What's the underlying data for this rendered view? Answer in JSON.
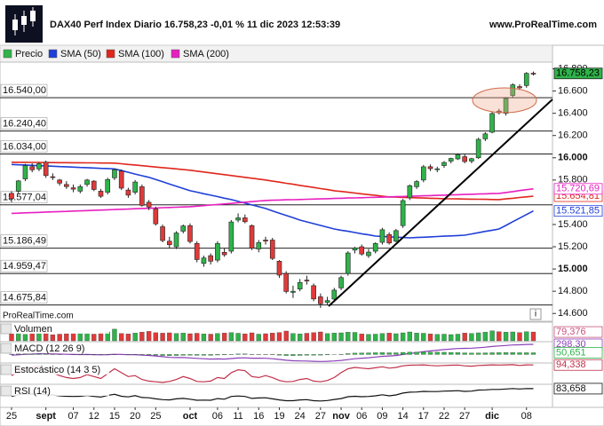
{
  "header": {
    "title": "DAX40 Perf Index Diario 16.758,23 -0,01 % 11 dic 2023 12:53:39",
    "site": "www.ProRealTime.com"
  },
  "chart_data": {
    "type": "candlestick",
    "name": "Precio",
    "up_color": "#2fb34a",
    "down_color": "#e03a3a",
    "watermark": "ProRealTime.com",
    "last_label": "16.758,23",
    "categories": [
      "25",
      null,
      null,
      null,
      null,
      "sept",
      null,
      null,
      null,
      "07",
      null,
      null,
      "12",
      null,
      null,
      "15",
      null,
      null,
      "20",
      null,
      null,
      "25",
      null,
      null,
      null,
      null,
      "oct",
      null,
      null,
      null,
      "06",
      null,
      null,
      "11",
      null,
      null,
      "16",
      null,
      null,
      "19",
      null,
      null,
      "24",
      null,
      null,
      "27",
      null,
      null,
      "nov",
      null,
      null,
      "06",
      null,
      null,
      "09",
      null,
      null,
      "14",
      null,
      null,
      "17",
      null,
      null,
      "22",
      null,
      null,
      "27",
      null,
      null,
      null,
      "dic",
      null,
      null,
      null,
      null,
      "08",
      null
    ],
    "open": [
      15680,
      15700,
      15810,
      15920,
      15900,
      15960,
      15830,
      15800,
      15760,
      15730,
      15700,
      15760,
      15790,
      15700,
      15690,
      15820,
      15880,
      15710,
      15690,
      15740,
      15600,
      15540,
      15380,
      15250,
      15200,
      15340,
      15390,
      15230,
      15050,
      15120,
      15080,
      15150,
      15160,
      15440,
      15460,
      15390,
      15180,
      15260,
      15260,
      15070,
      14960,
      14790,
      14820,
      14900,
      14850,
      14750,
      14700,
      14730,
      14830,
      14960,
      15170,
      15200,
      15120,
      15160,
      15240,
      15310,
      15250,
      15390,
      15640,
      15740,
      15800,
      15920,
      15900,
      15930,
      15970,
      15990,
      16010,
      15970,
      16000,
      16170,
      16230,
      16420,
      16400,
      16560,
      16640,
      16650,
      16760
    ],
    "high": [
      15700,
      15800,
      15945,
      15950,
      15960,
      15975,
      15860,
      15810,
      15790,
      15760,
      15760,
      15810,
      15800,
      15720,
      15820,
      15900,
      15895,
      15730,
      15800,
      15760,
      15620,
      15560,
      15400,
      15290,
      15340,
      15400,
      15410,
      15250,
      15120,
      15140,
      15250,
      15190,
      15440,
      15500,
      15490,
      15400,
      15260,
      15290,
      15280,
      15080,
      14980,
      14850,
      14910,
      14940,
      14870,
      14780,
      14750,
      14830,
      14940,
      15160,
      15200,
      15220,
      15180,
      15240,
      15370,
      15330,
      15360,
      15630,
      15760,
      15800,
      15935,
      15940,
      15920,
      15970,
      16000,
      16040,
      16030,
      16000,
      16180,
      16230,
      16410,
      16440,
      16545,
      16670,
      16660,
      16770,
      16775
    ],
    "low": [
      15600,
      15680,
      15790,
      15870,
      15880,
      15820,
      15800,
      15750,
      15720,
      15690,
      15680,
      15740,
      15700,
      15640,
      15670,
      15800,
      15710,
      15640,
      15670,
      15560,
      15530,
      15390,
      15240,
      15190,
      15180,
      15320,
      15230,
      15060,
      15020,
      15040,
      15060,
      15110,
      15140,
      15420,
      15410,
      15170,
      15150,
      15220,
      15080,
      14920,
      14780,
      14740,
      14800,
      14860,
      14710,
      14650,
      14680,
      14710,
      14810,
      14940,
      15140,
      15120,
      15100,
      15140,
      15220,
      15220,
      15240,
      15370,
      15620,
      15720,
      15780,
      15880,
      15870,
      15910,
      15950,
      15980,
      15950,
      15950,
      15990,
      16150,
      16220,
      16390,
      16380,
      16540,
      16610,
      16630,
      16740
    ],
    "close": [
      15632,
      15792,
      15930,
      15892,
      15947,
      15840,
      15825,
      15772,
      15741,
      15718,
      15740,
      15800,
      15715,
      15654,
      15805,
      15893,
      15727,
      15664,
      15782,
      15572,
      15557,
      15406,
      15256,
      15218,
      15324,
      15387,
      15247,
      15085,
      15099,
      15070,
      15229,
      15128,
      15423,
      15460,
      15425,
      15187,
      15237,
      15251,
      15095,
      14945,
      14798,
      14800,
      14879,
      14892,
      14731,
      14687,
      14716,
      14810,
      14923,
      15144,
      15189,
      15135,
      15152,
      15229,
      15353,
      15234,
      15345,
      15615,
      15749,
      15786,
      15919,
      15902,
      15901,
      15958,
      15994,
      16029,
      15966,
      15992,
      16166,
      16215,
      16398,
      16405,
      16533,
      16656,
      16629,
      16759,
      16758.23
    ],
    "ylim": [
      14530,
      16860
    ],
    "yticks": [
      {
        "value": 16800,
        "label": "16.800"
      },
      {
        "value": 16600,
        "label": "16.600"
      },
      {
        "value": 16400,
        "label": "16.400"
      },
      {
        "value": 16200,
        "label": "16.200"
      },
      {
        "value": 16000,
        "label": "16.000"
      },
      {
        "value": 15800,
        "label": "15.800"
      },
      {
        "value": 15400,
        "label": "15.400"
      },
      {
        "value": 15200,
        "label": "15.200"
      },
      {
        "value": 15000,
        "label": "15.000"
      },
      {
        "value": 14800,
        "label": "14.800"
      },
      {
        "value": 14600,
        "label": "14.600"
      }
    ],
    "levels": [
      {
        "value": 16540,
        "label": "16.540,00"
      },
      {
        "value": 16240.4,
        "label": "16.240,40"
      },
      {
        "value": 16034,
        "label": "16.034,00"
      },
      {
        "value": 15577.04,
        "label": "15.577,04"
      },
      {
        "value": 15186.49,
        "label": "15.186,49"
      },
      {
        "value": 14959.47,
        "label": "14.959,47"
      },
      {
        "value": 14675.84,
        "label": "14.675,84"
      }
    ],
    "series": [
      {
        "name": "SMA (50)",
        "color": "#1f3fd8",
        "last_label": "15.521,85",
        "values": [
          15940,
          15937,
          15935,
          15932,
          15929,
          15927,
          15924,
          15921,
          15919,
          15916,
          15913,
          15911,
          15908,
          15905,
          15903,
          15900,
          15885,
          15870,
          15854,
          15839,
          15824,
          15804,
          15784,
          15764,
          15744,
          15724,
          15704,
          15691,
          15677,
          15664,
          15651,
          15637,
          15624,
          15608,
          15592,
          15576,
          15560,
          15544,
          15523,
          15502,
          15482,
          15461,
          15440,
          15424,
          15408,
          15392,
          15376,
          15360,
          15349,
          15339,
          15328,
          15317,
          15307,
          15296,
          15293,
          15290,
          15286,
          15283,
          15280,
          15283,
          15286,
          15289,
          15292,
          15295,
          15298,
          15301,
          15304,
          15315,
          15326,
          15338,
          15349,
          15360,
          15392,
          15425,
          15457,
          15490,
          15521.85
        ]
      },
      {
        "name": "SMA (100)",
        "color": "#e0261c",
        "last_label": "15.654,81",
        "values": [
          15960,
          15959,
          15959,
          15958,
          15958,
          15957,
          15957,
          15956,
          15956,
          15955,
          15955,
          15954,
          15954,
          15953,
          15953,
          15952,
          15946,
          15940,
          15935,
          15929,
          15923,
          15917,
          15911,
          15906,
          15900,
          15894,
          15888,
          15880,
          15872,
          15864,
          15856,
          15848,
          15840,
          15832,
          15824,
          15816,
          15808,
          15800,
          15790,
          15781,
          15771,
          15762,
          15752,
          15742,
          15733,
          15723,
          15714,
          15704,
          15697,
          15690,
          15683,
          15676,
          15669,
          15662,
          15655,
          15648,
          15646,
          15644,
          15642,
          15640,
          15638,
          15636,
          15634,
          15632,
          15631,
          15630,
          15629,
          15628,
          15627,
          15626,
          15625,
          15624,
          15630,
          15636,
          15643,
          15649,
          15654.81
        ]
      },
      {
        "name": "SMA (200)",
        "color": "#e81fc0",
        "last_label": "15.720,69",
        "values": [
          15500,
          15502,
          15505,
          15507,
          15509,
          15512,
          15514,
          15516,
          15518,
          15521,
          15523,
          15525,
          15528,
          15530,
          15532,
          15535,
          15537,
          15539,
          15542,
          15544,
          15546,
          15548,
          15551,
          15553,
          15555,
          15558,
          15560,
          15565,
          15570,
          15575,
          15580,
          15585,
          15590,
          15596,
          15601,
          15606,
          15611,
          15616,
          15618,
          15620,
          15622,
          15623,
          15625,
          15627,
          15629,
          15630,
          15632,
          15634,
          15636,
          15638,
          15639,
          15641,
          15643,
          15645,
          15646,
          15648,
          15650,
          15652,
          15654,
          15656,
          15658,
          15660,
          15662,
          15664,
          15666,
          15668,
          15670,
          15672,
          15674,
          15676,
          15678,
          15680,
          15688,
          15696,
          15705,
          15713,
          15720.69
        ]
      }
    ],
    "panes": [
      {
        "name": "Volumen",
        "ylim": [
          0,
          160
        ],
        "series": [
          {
            "type": "bar",
            "color": "#c8507c",
            "last_label": "79,376",
            "values": [
              62,
              70,
              58,
              66,
              72,
              75,
              55,
              60,
              64,
              68,
              71,
              65,
              60,
              74,
              80,
              105,
              66,
              62,
              70,
              78,
              85,
              73,
              69,
              72,
              66,
              70,
              64,
              68,
              62,
              60,
              66,
              70,
              74,
              68,
              63,
              72,
              60,
              64,
              70,
              75,
              88,
              66,
              62,
              68,
              74,
              80,
              65,
              70,
              72,
              78,
              76,
              62,
              58,
              60,
              66,
              70,
              64,
              72,
              80,
              70,
              68,
              62,
              58,
              60,
              56,
              60,
              70,
              66,
              72,
              78,
              90,
              82,
              78,
              80,
              74,
              82,
              79.376
            ]
          }
        ]
      },
      {
        "name": "MACD (12 26 9)",
        "ylim": [
          -250,
          350
        ],
        "series": [
          {
            "type": "line",
            "color": "#8a3fb8",
            "last_label": "298,30",
            "values": [
              -20,
              -10,
              5,
              12,
              20,
              18,
              15,
              10,
              5,
              0,
              -2,
              0,
              -5,
              -10,
              -5,
              5,
              0,
              -8,
              -5,
              -18,
              -28,
              -45,
              -65,
              -85,
              -90,
              -92,
              -100,
              -115,
              -125,
              -135,
              -130,
              -135,
              -120,
              -105,
              -98,
              -108,
              -110,
              -112,
              -125,
              -145,
              -170,
              -185,
              -190,
              -192,
              -200,
              -205,
              -200,
              -190,
              -175,
              -150,
              -125,
              -110,
              -95,
              -75,
              -55,
              -45,
              -30,
              0,
              30,
              55,
              85,
              105,
              125,
              145,
              160,
              175,
              180,
              185,
              200,
              215,
              235,
              250,
              265,
              280,
              285,
              295,
              298.3
            ]
          },
          {
            "type": "bar",
            "color": "#2fb34a",
            "last_label": "50,651",
            "values": [
              10,
              15,
              20,
              18,
              20,
              15,
              10,
              5,
              0,
              -3,
              -5,
              -4,
              -6,
              -8,
              -4,
              2,
              0,
              -4,
              -3,
              -10,
              -15,
              -22,
              -30,
              -35,
              -30,
              -25,
              -22,
              -25,
              -24,
              -25,
              -15,
              -12,
              5,
              15,
              18,
              8,
              5,
              2,
              -8,
              -20,
              -30,
              -32,
              -28,
              -22,
              -20,
              -18,
              -12,
              -2,
              8,
              25,
              40,
              45,
              48,
              52,
              55,
              50,
              50,
              62,
              70,
              72,
              75,
              72,
              68,
              65,
              60,
              55,
              48,
              42,
              45,
              48,
              52,
              54,
              55,
              58,
              52,
              52,
              50.651
            ]
          }
        ]
      },
      {
        "name": "Estocástico (14 3 5)",
        "ylim": [
          0,
          100
        ],
        "series": [
          {
            "type": "line",
            "color": "#c0304a",
            "last_label": "94,338",
            "values": [
              40,
              60,
              80,
              85,
              88,
              70,
              55,
              40,
              30,
              25,
              30,
              45,
              35,
              25,
              50,
              75,
              55,
              35,
              40,
              20,
              12,
              8,
              5,
              10,
              20,
              35,
              25,
              10,
              8,
              12,
              30,
              25,
              55,
              70,
              65,
              35,
              30,
              40,
              30,
              15,
              8,
              10,
              20,
              25,
              12,
              8,
              15,
              30,
              55,
              75,
              82,
              78,
              75,
              80,
              85,
              78,
              82,
              90,
              93,
              94,
              95,
              92,
              90,
              92,
              93,
              94,
              90,
              88,
              92,
              93,
              95,
              94,
              95,
              96,
              92,
              95,
              94.338
            ]
          }
        ]
      },
      {
        "name": "RSI (14)",
        "ylim": [
          0,
          100
        ],
        "series": [
          {
            "type": "line",
            "color": "#111111",
            "last_label": "83,658",
            "values": [
              48,
              55,
              60,
              58,
              61,
              55,
              54,
              50,
              48,
              47,
              48,
              52,
              47,
              44,
              52,
              57,
              48,
              45,
              51,
              42,
              41,
              36,
              32,
              31,
              36,
              38,
              34,
              29,
              30,
              29,
              37,
              34,
              47,
              49,
              47,
              38,
              40,
              41,
              36,
              31,
              27,
              27,
              31,
              32,
              27,
              26,
              28,
              33,
              37,
              46,
              48,
              46,
              47,
              50,
              55,
              50,
              54,
              63,
              67,
              68,
              71,
              70,
              70,
              72,
              73,
              74,
              71,
              72,
              77,
              78,
              80,
              80,
              82,
              84,
              82,
              84,
              83.658
            ]
          }
        ]
      }
    ]
  }
}
